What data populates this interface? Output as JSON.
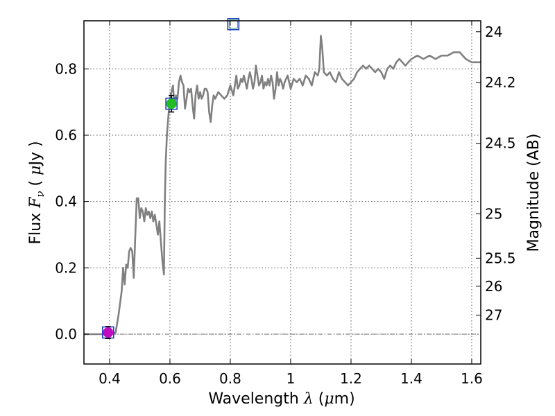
{
  "chart_data": {
    "type": "line",
    "xlabel": "Wavelength  λ (μm)",
    "ylabel": "Flux  Fν  ( μJy )",
    "y2label": "Magnitude (AB)",
    "xlim": [
      0.315,
      1.63
    ],
    "ylim": [
      -0.09,
      0.945
    ],
    "x_ticks": [
      0.4,
      0.6,
      0.8,
      1,
      1.2,
      1.4,
      1.6
    ],
    "x_tick_labels": [
      "0.4",
      "0.6",
      "0.8",
      "1",
      "1.2",
      "1.4",
      "1.6"
    ],
    "y_ticks": [
      0,
      0.2,
      0.4,
      0.6,
      0.8
    ],
    "y_tick_labels": [
      "0.0",
      "0.2",
      "0.4",
      "0.6",
      "0.8"
    ],
    "mag_ticks": [
      "24",
      "24.2",
      "24.5",
      "25",
      "25.5",
      "26",
      "27"
    ],
    "grid": true,
    "series": [
      {
        "kind": "model-spectrum",
        "color": "#808080",
        "points": [
          [
            0.315,
            0.0
          ],
          [
            0.4,
            0.0
          ],
          [
            0.42,
            0.005
          ],
          [
            0.43,
            0.06
          ],
          [
            0.44,
            0.13
          ],
          [
            0.445,
            0.2
          ],
          [
            0.45,
            0.15
          ],
          [
            0.455,
            0.21
          ],
          [
            0.46,
            0.2
          ],
          [
            0.465,
            0.25
          ],
          [
            0.47,
            0.26
          ],
          [
            0.475,
            0.25
          ],
          [
            0.48,
            0.17
          ],
          [
            0.485,
            0.29
          ],
          [
            0.49,
            0.41
          ],
          [
            0.495,
            0.41
          ],
          [
            0.5,
            0.35
          ],
          [
            0.505,
            0.38
          ],
          [
            0.51,
            0.37
          ],
          [
            0.515,
            0.34
          ],
          [
            0.52,
            0.38
          ],
          [
            0.525,
            0.36
          ],
          [
            0.53,
            0.37
          ],
          [
            0.535,
            0.35
          ],
          [
            0.54,
            0.37
          ],
          [
            0.545,
            0.34
          ],
          [
            0.55,
            0.36
          ],
          [
            0.555,
            0.33
          ],
          [
            0.56,
            0.3
          ],
          [
            0.565,
            0.34
          ],
          [
            0.57,
            0.28
          ],
          [
            0.575,
            0.22
          ],
          [
            0.58,
            0.18
          ],
          [
            0.583,
            0.4
          ],
          [
            0.586,
            0.52
          ],
          [
            0.59,
            0.6
          ],
          [
            0.595,
            0.66
          ],
          [
            0.6,
            0.71
          ],
          [
            0.605,
            0.73
          ],
          [
            0.61,
            0.75
          ],
          [
            0.615,
            0.69
          ],
          [
            0.62,
            0.72
          ],
          [
            0.625,
            0.71
          ],
          [
            0.63,
            0.76
          ],
          [
            0.635,
            0.78
          ],
          [
            0.64,
            0.76
          ],
          [
            0.645,
            0.75
          ],
          [
            0.65,
            0.68
          ],
          [
            0.655,
            0.71
          ],
          [
            0.66,
            0.74
          ],
          [
            0.665,
            0.73
          ],
          [
            0.67,
            0.74
          ],
          [
            0.675,
            0.69
          ],
          [
            0.68,
            0.65
          ],
          [
            0.685,
            0.72
          ],
          [
            0.69,
            0.75
          ],
          [
            0.695,
            0.71
          ],
          [
            0.7,
            0.73
          ],
          [
            0.705,
            0.71
          ],
          [
            0.71,
            0.72
          ],
          [
            0.715,
            0.74
          ],
          [
            0.72,
            0.74
          ],
          [
            0.725,
            0.73
          ],
          [
            0.73,
            0.67
          ],
          [
            0.735,
            0.64
          ],
          [
            0.74,
            0.69
          ],
          [
            0.745,
            0.72
          ],
          [
            0.75,
            0.71
          ],
          [
            0.755,
            0.72
          ],
          [
            0.76,
            0.73
          ],
          [
            0.77,
            0.72
          ],
          [
            0.78,
            0.71
          ],
          [
            0.79,
            0.72
          ],
          [
            0.8,
            0.75
          ],
          [
            0.81,
            0.72
          ],
          [
            0.82,
            0.78
          ],
          [
            0.825,
            0.74
          ],
          [
            0.83,
            0.75
          ],
          [
            0.835,
            0.77
          ],
          [
            0.84,
            0.76
          ],
          [
            0.845,
            0.78
          ],
          [
            0.85,
            0.76
          ],
          [
            0.855,
            0.74
          ],
          [
            0.86,
            0.77
          ],
          [
            0.865,
            0.79
          ],
          [
            0.87,
            0.77
          ],
          [
            0.875,
            0.74
          ],
          [
            0.88,
            0.76
          ],
          [
            0.885,
            0.81
          ],
          [
            0.89,
            0.78
          ],
          [
            0.895,
            0.75
          ],
          [
            0.9,
            0.76
          ],
          [
            0.905,
            0.78
          ],
          [
            0.91,
            0.74
          ],
          [
            0.915,
            0.76
          ],
          [
            0.92,
            0.75
          ],
          [
            0.925,
            0.77
          ],
          [
            0.93,
            0.75
          ],
          [
            0.935,
            0.78
          ],
          [
            0.94,
            0.76
          ],
          [
            0.945,
            0.71
          ],
          [
            0.95,
            0.74
          ],
          [
            0.955,
            0.79
          ],
          [
            0.96,
            0.75
          ],
          [
            0.965,
            0.77
          ],
          [
            0.97,
            0.76
          ],
          [
            0.975,
            0.74
          ],
          [
            0.98,
            0.76
          ],
          [
            0.99,
            0.78
          ],
          [
            1.0,
            0.74
          ],
          [
            1.01,
            0.77
          ],
          [
            1.02,
            0.76
          ],
          [
            1.03,
            0.77
          ],
          [
            1.04,
            0.75
          ],
          [
            1.05,
            0.78
          ],
          [
            1.06,
            0.77
          ],
          [
            1.07,
            0.75
          ],
          [
            1.08,
            0.79
          ],
          [
            1.09,
            0.78
          ],
          [
            1.095,
            0.8
          ],
          [
            1.1,
            0.9
          ],
          [
            1.105,
            0.86
          ],
          [
            1.11,
            0.79
          ],
          [
            1.12,
            0.78
          ],
          [
            1.13,
            0.79
          ],
          [
            1.14,
            0.77
          ],
          [
            1.15,
            0.76
          ],
          [
            1.16,
            0.79
          ],
          [
            1.17,
            0.77
          ],
          [
            1.18,
            0.76
          ],
          [
            1.19,
            0.75
          ],
          [
            1.2,
            0.76
          ],
          [
            1.21,
            0.77
          ],
          [
            1.22,
            0.79
          ],
          [
            1.23,
            0.8
          ],
          [
            1.24,
            0.81
          ],
          [
            1.25,
            0.8
          ],
          [
            1.26,
            0.81
          ],
          [
            1.27,
            0.8
          ],
          [
            1.28,
            0.79
          ],
          [
            1.29,
            0.8
          ],
          [
            1.3,
            0.79
          ],
          [
            1.31,
            0.77
          ],
          [
            1.32,
            0.8
          ],
          [
            1.33,
            0.81
          ],
          [
            1.34,
            0.8
          ],
          [
            1.35,
            0.82
          ],
          [
            1.36,
            0.83
          ],
          [
            1.37,
            0.82
          ],
          [
            1.38,
            0.81
          ],
          [
            1.39,
            0.82
          ],
          [
            1.4,
            0.83
          ],
          [
            1.42,
            0.84
          ],
          [
            1.44,
            0.83
          ],
          [
            1.46,
            0.84
          ],
          [
            1.48,
            0.83
          ],
          [
            1.5,
            0.84
          ],
          [
            1.52,
            0.84
          ],
          [
            1.54,
            0.85
          ],
          [
            1.56,
            0.85
          ],
          [
            1.58,
            0.83
          ],
          [
            1.6,
            0.82
          ],
          [
            1.63,
            0.82
          ]
        ]
      },
      {
        "kind": "model-photometry",
        "marker": "open-square",
        "color": "#1f3fbf",
        "points": [
          [
            0.395,
            0.005
          ],
          [
            0.605,
            0.695
          ],
          [
            0.81,
            0.935
          ]
        ]
      },
      {
        "kind": "observed-photometry",
        "marker": "filled-circle",
        "points": [
          {
            "x": 0.395,
            "y": 0.005,
            "yerr": 0.018,
            "color": "#c00cc0"
          },
          {
            "x": 0.605,
            "y": 0.695,
            "yerr": 0.025,
            "color": "#22bb22"
          }
        ]
      }
    ]
  }
}
